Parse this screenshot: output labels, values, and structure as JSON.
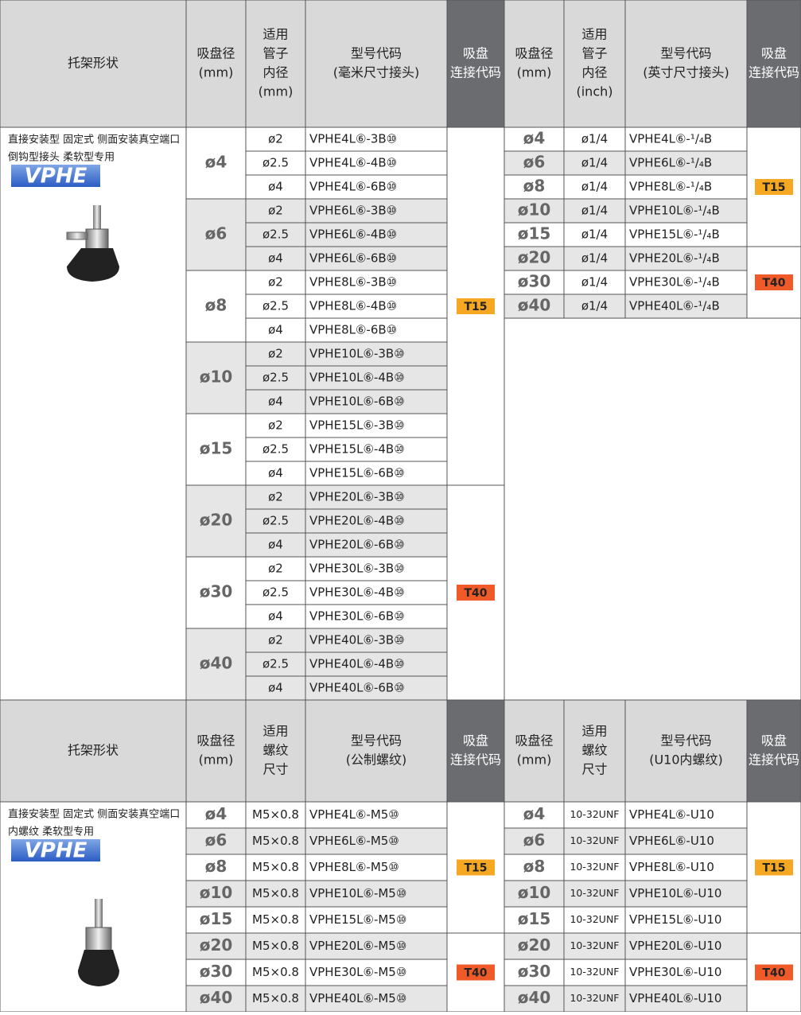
{
  "sections": [
    {
      "header": {
        "bracket": "托架形状",
        "diameter": [
          "吸盘径",
          "(mm)"
        ],
        "tube": [
          "适用",
          "管子",
          "内径",
          "(mm)"
        ],
        "model": [
          "型号代码",
          "(毫米尺寸接头)"
        ],
        "code": [
          "吸盘",
          "连接代码"
        ],
        "diameter2": [
          "吸盘径",
          "(mm)"
        ],
        "tube2": [
          "适用",
          "管子",
          "内径",
          "(inch)"
        ],
        "model2": [
          "型号代码",
          "(英寸尺寸接头)"
        ],
        "code2": [
          "吸盘",
          "连接代码"
        ]
      },
      "bracket": {
        "desc": [
          "直接安装型 固定式 侧面安装真空端口",
          "倒钩型接头 柔软型专用"
        ],
        "series": "VPHE"
      },
      "left": [
        {
          "diameter": "ø4",
          "code": "T15",
          "rows": [
            {
              "tube": "ø2",
              "model": "VPHE4L⑥-3B⑩"
            },
            {
              "tube": "ø2.5",
              "model": "VPHE4L⑥-4B⑩"
            },
            {
              "tube": "ø4",
              "model": "VPHE4L⑥-6B⑩"
            }
          ]
        },
        {
          "diameter": "ø6",
          "code": "T15",
          "rows": [
            {
              "tube": "ø2",
              "model": "VPHE6L⑥-3B⑩"
            },
            {
              "tube": "ø2.5",
              "model": "VPHE6L⑥-4B⑩"
            },
            {
              "tube": "ø4",
              "model": "VPHE6L⑥-6B⑩"
            }
          ]
        },
        {
          "diameter": "ø8",
          "code": "T15",
          "rows": [
            {
              "tube": "ø2",
              "model": "VPHE8L⑥-3B⑩"
            },
            {
              "tube": "ø2.5",
              "model": "VPHE8L⑥-4B⑩"
            },
            {
              "tube": "ø4",
              "model": "VPHE8L⑥-6B⑩"
            }
          ]
        },
        {
          "diameter": "ø10",
          "code": "T15",
          "rows": [
            {
              "tube": "ø2",
              "model": "VPHE10L⑥-3B⑩"
            },
            {
              "tube": "ø2.5",
              "model": "VPHE10L⑥-4B⑩"
            },
            {
              "tube": "ø4",
              "model": "VPHE10L⑥-6B⑩"
            }
          ]
        },
        {
          "diameter": "ø15",
          "code": "T15",
          "rows": [
            {
              "tube": "ø2",
              "model": "VPHE15L⑥-3B⑩"
            },
            {
              "tube": "ø2.5",
              "model": "VPHE15L⑥-4B⑩"
            },
            {
              "tube": "ø4",
              "model": "VPHE15L⑥-6B⑩"
            }
          ]
        },
        {
          "diameter": "ø20",
          "code": "T40",
          "rows": [
            {
              "tube": "ø2",
              "model": "VPHE20L⑥-3B⑩"
            },
            {
              "tube": "ø2.5",
              "model": "VPHE20L⑥-4B⑩"
            },
            {
              "tube": "ø4",
              "model": "VPHE20L⑥-6B⑩"
            }
          ]
        },
        {
          "diameter": "ø30",
          "code": "T40",
          "rows": [
            {
              "tube": "ø2",
              "model": "VPHE30L⑥-3B⑩"
            },
            {
              "tube": "ø2.5",
              "model": "VPHE30L⑥-4B⑩"
            },
            {
              "tube": "ø4",
              "model": "VPHE30L⑥-6B⑩"
            }
          ]
        },
        {
          "diameter": "ø40",
          "code": "T40",
          "rows": [
            {
              "tube": "ø2",
              "model": "VPHE40L⑥-3B⑩"
            },
            {
              "tube": "ø2.5",
              "model": "VPHE40L⑥-4B⑩"
            },
            {
              "tube": "ø4",
              "model": "VPHE40L⑥-6B⑩"
            }
          ]
        }
      ],
      "right": [
        {
          "diameter": "ø4",
          "code": "T15",
          "rows": [
            {
              "tube": "ø1/4",
              "model": "VPHE4L⑥-¹/₄B"
            }
          ]
        },
        {
          "diameter": "ø6",
          "code": "T15",
          "rows": [
            {
              "tube": "ø1/4",
              "model": "VPHE6L⑥-¹/₄B"
            }
          ]
        },
        {
          "diameter": "ø8",
          "code": "T15",
          "rows": [
            {
              "tube": "ø1/4",
              "model": "VPHE8L⑥-¹/₄B"
            }
          ]
        },
        {
          "diameter": "ø10",
          "code": "T15",
          "rows": [
            {
              "tube": "ø1/4",
              "model": "VPHE10L⑥-¹/₄B"
            }
          ]
        },
        {
          "diameter": "ø15",
          "code": "T15",
          "rows": [
            {
              "tube": "ø1/4",
              "model": "VPHE15L⑥-¹/₄B"
            }
          ]
        },
        {
          "diameter": "ø20",
          "code": "T40",
          "rows": [
            {
              "tube": "ø1/4",
              "model": "VPHE20L⑥-¹/₄B"
            }
          ]
        },
        {
          "diameter": "ø30",
          "code": "T40",
          "rows": [
            {
              "tube": "ø1/4",
              "model": "VPHE30L⑥-¹/₄B"
            }
          ]
        },
        {
          "diameter": "ø40",
          "code": "T40",
          "rows": [
            {
              "tube": "ø1/4",
              "model": "VPHE40L⑥-¹/₄B"
            }
          ]
        }
      ]
    },
    {
      "header": {
        "bracket": "托架形状",
        "diameter": [
          "吸盘径",
          "(mm)"
        ],
        "tube": [
          "适用",
          "螺纹",
          "尺寸"
        ],
        "model": [
          "型号代码",
          "(公制螺纹)"
        ],
        "code": [
          "吸盘",
          "连接代码"
        ],
        "diameter2": [
          "吸盘径",
          "(mm)"
        ],
        "tube2": [
          "适用",
          "螺纹",
          "尺寸"
        ],
        "model2": [
          "型号代码",
          "(U10内螺纹)"
        ],
        "code2": [
          "吸盘",
          "连接代码"
        ]
      },
      "bracket": {
        "desc": [
          "直接安装型 固定式 侧面安装真空端口",
          "内螺纹 柔软型专用"
        ],
        "series": "VPHE"
      },
      "left": [
        {
          "diameter": "ø4",
          "code": "T15",
          "rows": [
            {
              "tube": "M5×0.8",
              "model": "VPHE4L⑥-M5⑩"
            }
          ]
        },
        {
          "diameter": "ø6",
          "code": "T15",
          "rows": [
            {
              "tube": "M5×0.8",
              "model": "VPHE6L⑥-M5⑩"
            }
          ]
        },
        {
          "diameter": "ø8",
          "code": "T15",
          "rows": [
            {
              "tube": "M5×0.8",
              "model": "VPHE8L⑥-M5⑩"
            }
          ]
        },
        {
          "diameter": "ø10",
          "code": "T15",
          "rows": [
            {
              "tube": "M5×0.8",
              "model": "VPHE10L⑥-M5⑩"
            }
          ]
        },
        {
          "diameter": "ø15",
          "code": "T15",
          "rows": [
            {
              "tube": "M5×0.8",
              "model": "VPHE15L⑥-M5⑩"
            }
          ]
        },
        {
          "diameter": "ø20",
          "code": "T40",
          "rows": [
            {
              "tube": "M5×0.8",
              "model": "VPHE20L⑥-M5⑩"
            }
          ]
        },
        {
          "diameter": "ø30",
          "code": "T40",
          "rows": [
            {
              "tube": "M5×0.8",
              "model": "VPHE30L⑥-M5⑩"
            }
          ]
        },
        {
          "diameter": "ø40",
          "code": "T40",
          "rows": [
            {
              "tube": "M5×0.8",
              "model": "VPHE40L⑥-M5⑩"
            }
          ]
        }
      ],
      "right": [
        {
          "diameter": "ø4",
          "code": "T15",
          "rows": [
            {
              "tube": "10-32UNF",
              "model": "VPHE4L⑥-U10"
            }
          ]
        },
        {
          "diameter": "ø6",
          "code": "T15",
          "rows": [
            {
              "tube": "10-32UNF",
              "model": "VPHE6L⑥-U10"
            }
          ]
        },
        {
          "diameter": "ø8",
          "code": "T15",
          "rows": [
            {
              "tube": "10-32UNF",
              "model": "VPHE8L⑥-U10"
            }
          ]
        },
        {
          "diameter": "ø10",
          "code": "T15",
          "rows": [
            {
              "tube": "10-32UNF",
              "model": "VPHE10L⑥-U10"
            }
          ]
        },
        {
          "diameter": "ø15",
          "code": "T15",
          "rows": [
            {
              "tube": "10-32UNF",
              "model": "VPHE15L⑥-U10"
            }
          ]
        },
        {
          "diameter": "ø20",
          "code": "T40",
          "rows": [
            {
              "tube": "10-32UNF",
              "model": "VPHE20L⑥-U10"
            }
          ]
        },
        {
          "diameter": "ø30",
          "code": "T40",
          "rows": [
            {
              "tube": "10-32UNF",
              "model": "VPHE30L⑥-U10"
            }
          ]
        },
        {
          "diameter": "ø40",
          "code": "T40",
          "rows": [
            {
              "tube": "10-32UNF",
              "model": "VPHE40L⑥-U10"
            }
          ]
        }
      ]
    }
  ]
}
